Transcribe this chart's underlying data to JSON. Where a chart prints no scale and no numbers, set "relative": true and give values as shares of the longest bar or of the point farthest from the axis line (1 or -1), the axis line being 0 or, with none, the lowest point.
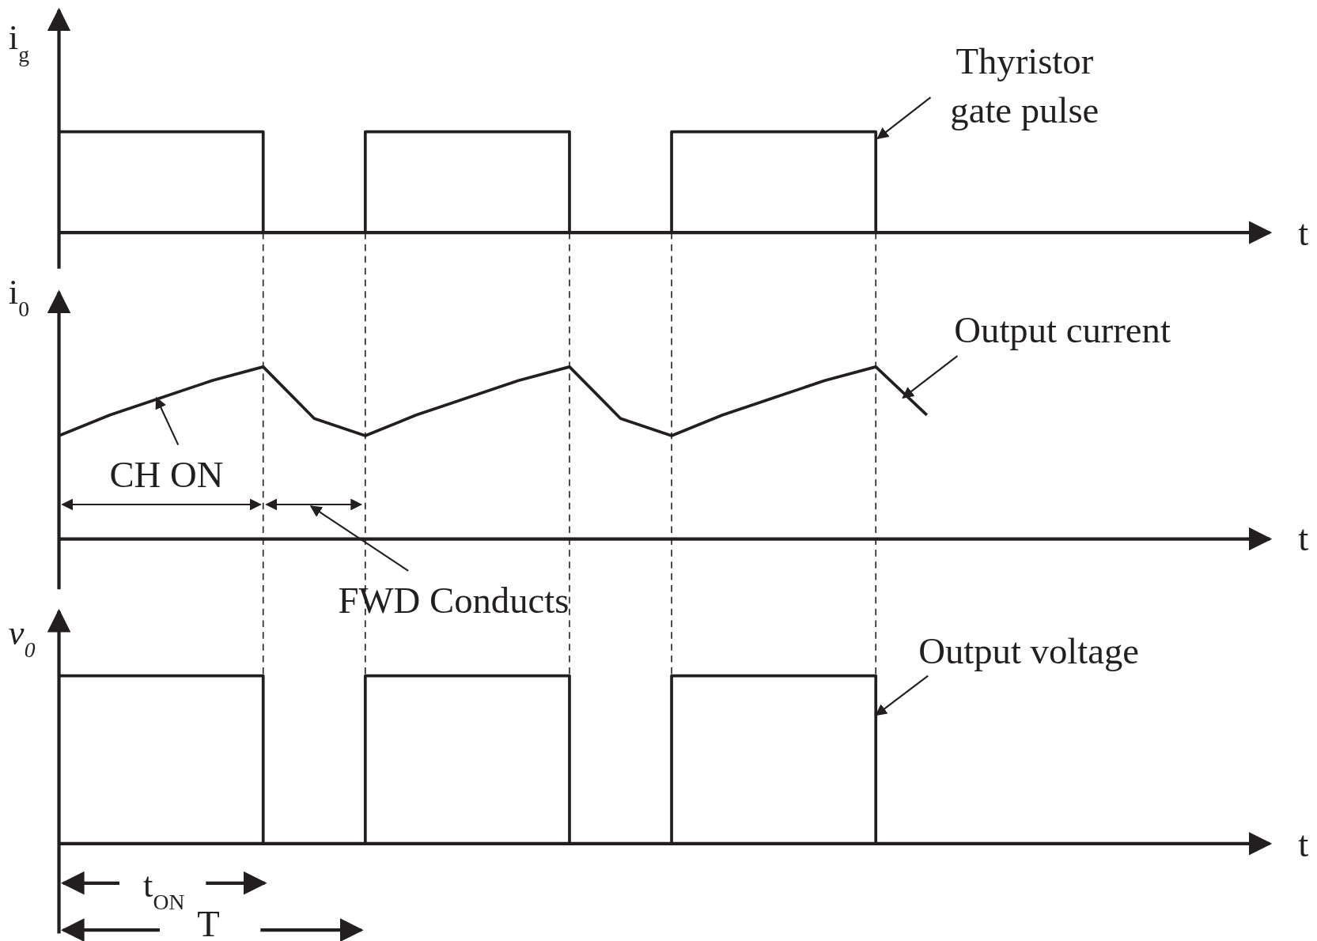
{
  "chart_data": [
    {
      "type": "step",
      "relative": true,
      "ylabel": "i$_{g}$",
      "xlabel": "t",
      "categories": [
        null,
        null,
        null,
        null,
        null,
        null,
        null,
        null,
        null,
        null,
        null,
        null,
        null,
        null,
        null,
        null,
        null,
        null,
        null,
        null,
        null,
        null,
        null,
        null
      ],
      "series": [
        {
          "color": "#231f20",
          "values": [
            1,
            1,
            1,
            1,
            0,
            0,
            1,
            1,
            1,
            1,
            0,
            0,
            1,
            1,
            1,
            1,
            0,
            null,
            null,
            null,
            null,
            null,
            null,
            null
          ]
        }
      ],
      "annotations": [
        "Thyristor gate pulse"
      ]
    },
    {
      "type": "line",
      "relative": true,
      "ylabel": "i$_{0}$",
      "xlabel": "t",
      "grid": "x",
      "categories": [
        null,
        null,
        null,
        null,
        null,
        null,
        null,
        null,
        null,
        null,
        null,
        null,
        null,
        null,
        null,
        null,
        null,
        null,
        null,
        null,
        null,
        null,
        null,
        null
      ],
      "series": [
        {
          "color": "#231f20",
          "values": [
            0.6,
            0.72,
            0.82,
            0.92,
            1,
            0.7,
            0.6,
            0.72,
            0.82,
            0.92,
            1,
            0.7,
            0.6,
            0.72,
            0.82,
            0.92,
            1,
            0.72,
            null,
            null,
            null,
            null,
            null,
            null
          ]
        }
      ],
      "annotations": [
        "Output current",
        "CH ON",
        "FWD Conducts"
      ]
    },
    {
      "type": "step",
      "relative": true,
      "ylabel": "v$_{0}$",
      "xlabel": "t",
      "categories": [
        null,
        null,
        null,
        null,
        null,
        null,
        null,
        null,
        null,
        null,
        null,
        null,
        null,
        null,
        null,
        null,
        null,
        null,
        null,
        null,
        null,
        null,
        null,
        null
      ],
      "series": [
        {
          "color": "#231f20",
          "values": [
            1,
            1,
            1,
            1,
            0,
            0,
            1,
            1,
            1,
            1,
            0,
            0,
            1,
            1,
            1,
            1,
            0,
            null,
            null,
            null,
            null,
            null,
            null,
            null
          ]
        }
      ],
      "annotations": [
        "Output voltage",
        "t$_{ON}$",
        "T"
      ]
    }
  ]
}
